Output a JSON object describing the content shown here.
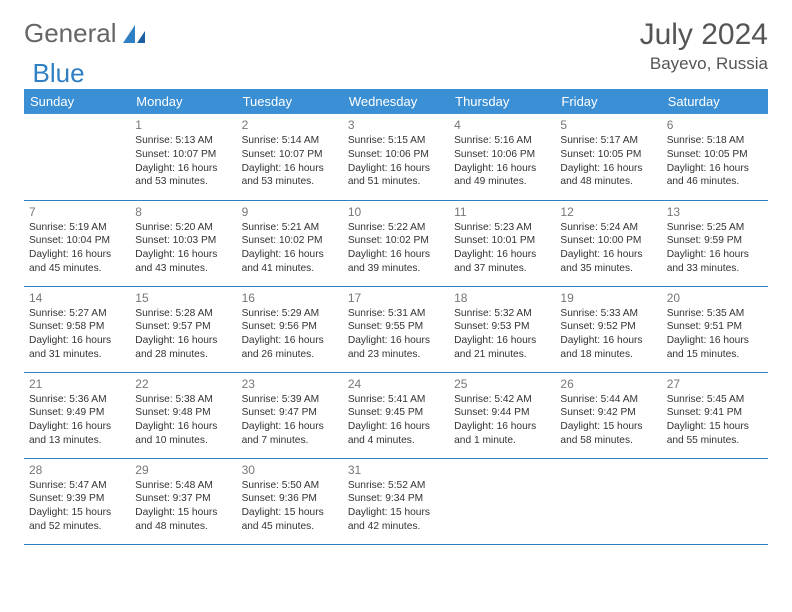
{
  "brand": {
    "part1": "General",
    "part2": "Blue"
  },
  "title": "July 2024",
  "location": "Bayevo, Russia",
  "colors": {
    "header_bg": "#3b8fd4",
    "header_text": "#ffffff",
    "row_border": "#2f7fc4",
    "daynum": "#777777",
    "text": "#333333",
    "brand_gray": "#666666",
    "brand_blue": "#2f7fc4"
  },
  "weekdays": [
    "Sunday",
    "Monday",
    "Tuesday",
    "Wednesday",
    "Thursday",
    "Friday",
    "Saturday"
  ],
  "weeks": [
    [
      null,
      {
        "d": "1",
        "sr": "Sunrise: 5:13 AM",
        "ss": "Sunset: 10:07 PM",
        "dl1": "Daylight: 16 hours",
        "dl2": "and 53 minutes."
      },
      {
        "d": "2",
        "sr": "Sunrise: 5:14 AM",
        "ss": "Sunset: 10:07 PM",
        "dl1": "Daylight: 16 hours",
        "dl2": "and 53 minutes."
      },
      {
        "d": "3",
        "sr": "Sunrise: 5:15 AM",
        "ss": "Sunset: 10:06 PM",
        "dl1": "Daylight: 16 hours",
        "dl2": "and 51 minutes."
      },
      {
        "d": "4",
        "sr": "Sunrise: 5:16 AM",
        "ss": "Sunset: 10:06 PM",
        "dl1": "Daylight: 16 hours",
        "dl2": "and 49 minutes."
      },
      {
        "d": "5",
        "sr": "Sunrise: 5:17 AM",
        "ss": "Sunset: 10:05 PM",
        "dl1": "Daylight: 16 hours",
        "dl2": "and 48 minutes."
      },
      {
        "d": "6",
        "sr": "Sunrise: 5:18 AM",
        "ss": "Sunset: 10:05 PM",
        "dl1": "Daylight: 16 hours",
        "dl2": "and 46 minutes."
      }
    ],
    [
      {
        "d": "7",
        "sr": "Sunrise: 5:19 AM",
        "ss": "Sunset: 10:04 PM",
        "dl1": "Daylight: 16 hours",
        "dl2": "and 45 minutes."
      },
      {
        "d": "8",
        "sr": "Sunrise: 5:20 AM",
        "ss": "Sunset: 10:03 PM",
        "dl1": "Daylight: 16 hours",
        "dl2": "and 43 minutes."
      },
      {
        "d": "9",
        "sr": "Sunrise: 5:21 AM",
        "ss": "Sunset: 10:02 PM",
        "dl1": "Daylight: 16 hours",
        "dl2": "and 41 minutes."
      },
      {
        "d": "10",
        "sr": "Sunrise: 5:22 AM",
        "ss": "Sunset: 10:02 PM",
        "dl1": "Daylight: 16 hours",
        "dl2": "and 39 minutes."
      },
      {
        "d": "11",
        "sr": "Sunrise: 5:23 AM",
        "ss": "Sunset: 10:01 PM",
        "dl1": "Daylight: 16 hours",
        "dl2": "and 37 minutes."
      },
      {
        "d": "12",
        "sr": "Sunrise: 5:24 AM",
        "ss": "Sunset: 10:00 PM",
        "dl1": "Daylight: 16 hours",
        "dl2": "and 35 minutes."
      },
      {
        "d": "13",
        "sr": "Sunrise: 5:25 AM",
        "ss": "Sunset: 9:59 PM",
        "dl1": "Daylight: 16 hours",
        "dl2": "and 33 minutes."
      }
    ],
    [
      {
        "d": "14",
        "sr": "Sunrise: 5:27 AM",
        "ss": "Sunset: 9:58 PM",
        "dl1": "Daylight: 16 hours",
        "dl2": "and 31 minutes."
      },
      {
        "d": "15",
        "sr": "Sunrise: 5:28 AM",
        "ss": "Sunset: 9:57 PM",
        "dl1": "Daylight: 16 hours",
        "dl2": "and 28 minutes."
      },
      {
        "d": "16",
        "sr": "Sunrise: 5:29 AM",
        "ss": "Sunset: 9:56 PM",
        "dl1": "Daylight: 16 hours",
        "dl2": "and 26 minutes."
      },
      {
        "d": "17",
        "sr": "Sunrise: 5:31 AM",
        "ss": "Sunset: 9:55 PM",
        "dl1": "Daylight: 16 hours",
        "dl2": "and 23 minutes."
      },
      {
        "d": "18",
        "sr": "Sunrise: 5:32 AM",
        "ss": "Sunset: 9:53 PM",
        "dl1": "Daylight: 16 hours",
        "dl2": "and 21 minutes."
      },
      {
        "d": "19",
        "sr": "Sunrise: 5:33 AM",
        "ss": "Sunset: 9:52 PM",
        "dl1": "Daylight: 16 hours",
        "dl2": "and 18 minutes."
      },
      {
        "d": "20",
        "sr": "Sunrise: 5:35 AM",
        "ss": "Sunset: 9:51 PM",
        "dl1": "Daylight: 16 hours",
        "dl2": "and 15 minutes."
      }
    ],
    [
      {
        "d": "21",
        "sr": "Sunrise: 5:36 AM",
        "ss": "Sunset: 9:49 PM",
        "dl1": "Daylight: 16 hours",
        "dl2": "and 13 minutes."
      },
      {
        "d": "22",
        "sr": "Sunrise: 5:38 AM",
        "ss": "Sunset: 9:48 PM",
        "dl1": "Daylight: 16 hours",
        "dl2": "and 10 minutes."
      },
      {
        "d": "23",
        "sr": "Sunrise: 5:39 AM",
        "ss": "Sunset: 9:47 PM",
        "dl1": "Daylight: 16 hours",
        "dl2": "and 7 minutes."
      },
      {
        "d": "24",
        "sr": "Sunrise: 5:41 AM",
        "ss": "Sunset: 9:45 PM",
        "dl1": "Daylight: 16 hours",
        "dl2": "and 4 minutes."
      },
      {
        "d": "25",
        "sr": "Sunrise: 5:42 AM",
        "ss": "Sunset: 9:44 PM",
        "dl1": "Daylight: 16 hours",
        "dl2": "and 1 minute."
      },
      {
        "d": "26",
        "sr": "Sunrise: 5:44 AM",
        "ss": "Sunset: 9:42 PM",
        "dl1": "Daylight: 15 hours",
        "dl2": "and 58 minutes."
      },
      {
        "d": "27",
        "sr": "Sunrise: 5:45 AM",
        "ss": "Sunset: 9:41 PM",
        "dl1": "Daylight: 15 hours",
        "dl2": "and 55 minutes."
      }
    ],
    [
      {
        "d": "28",
        "sr": "Sunrise: 5:47 AM",
        "ss": "Sunset: 9:39 PM",
        "dl1": "Daylight: 15 hours",
        "dl2": "and 52 minutes."
      },
      {
        "d": "29",
        "sr": "Sunrise: 5:48 AM",
        "ss": "Sunset: 9:37 PM",
        "dl1": "Daylight: 15 hours",
        "dl2": "and 48 minutes."
      },
      {
        "d": "30",
        "sr": "Sunrise: 5:50 AM",
        "ss": "Sunset: 9:36 PM",
        "dl1": "Daylight: 15 hours",
        "dl2": "and 45 minutes."
      },
      {
        "d": "31",
        "sr": "Sunrise: 5:52 AM",
        "ss": "Sunset: 9:34 PM",
        "dl1": "Daylight: 15 hours",
        "dl2": "and 42 minutes."
      },
      null,
      null,
      null
    ]
  ]
}
